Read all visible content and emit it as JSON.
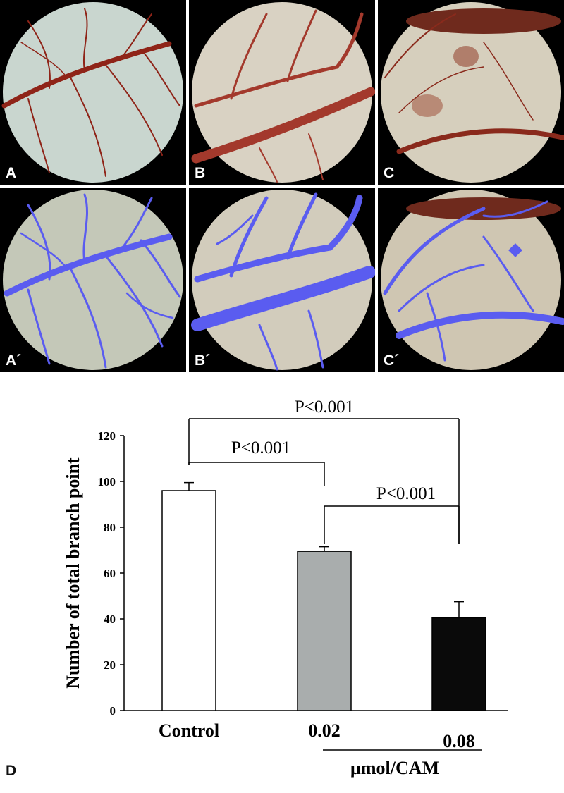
{
  "panels": [
    {
      "label": "A"
    },
    {
      "label": "B"
    },
    {
      "label": "C"
    },
    {
      "label": "A´"
    },
    {
      "label": "B´"
    },
    {
      "label": "C´"
    }
  ],
  "panel_d_label": "D",
  "colors": {
    "vessel": "#9b2a1e",
    "overlay": "#5a5cf0",
    "control_bar": "#ffffff",
    "low_bar": "#a9adad",
    "high_bar": "#0a0a0a"
  },
  "chart_data": {
    "type": "bar",
    "categories": [
      "Control",
      "0.02",
      "0.08"
    ],
    "values": [
      96,
      69.5,
      40.5
    ],
    "errors": [
      3.5,
      2,
      7
    ],
    "bar_colors": [
      "#ffffff",
      "#a9adad",
      "#0a0a0a"
    ],
    "ylabel": "Number of total branch point",
    "xlabel": "µmol/CAM",
    "ylim": [
      0,
      120
    ],
    "yticks": [
      0,
      20,
      40,
      60,
      80,
      100,
      120
    ],
    "grid": false,
    "comparisons": [
      {
        "from": "Control",
        "to": "0.08",
        "label": "P<0.001"
      },
      {
        "from": "Control",
        "to": "0.02",
        "label": "P<0.001"
      },
      {
        "from": "0.02",
        "to": "0.08",
        "label": "P<0.001"
      }
    ]
  }
}
